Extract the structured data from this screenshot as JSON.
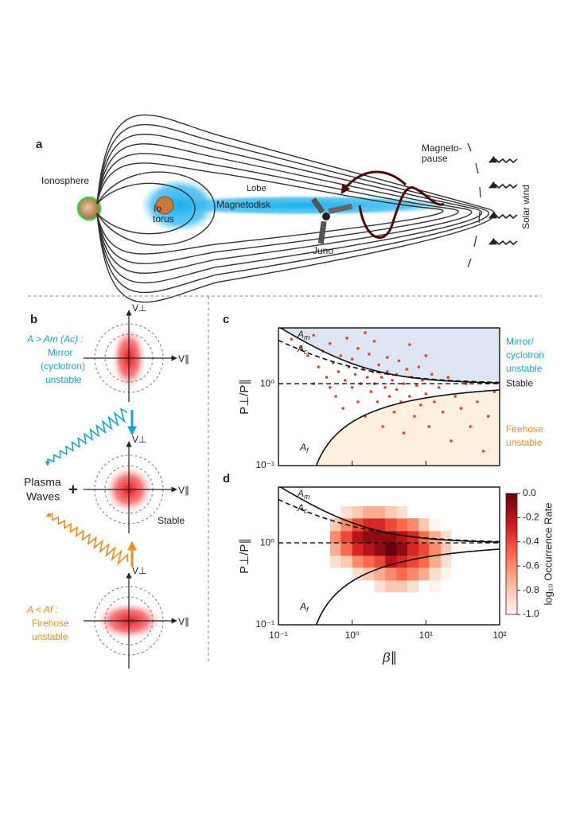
{
  "panel_a": {
    "label": "a",
    "ionosphere": "Ionosphere",
    "io_torus": [
      "Io",
      "torus"
    ],
    "lobe": "Lobe",
    "magnetodisk": "Magnetodisk",
    "juno": "Juno",
    "magnetopause": [
      "Magneto-",
      "pause"
    ],
    "solar_wind": "Solar wind"
  },
  "panel_b": {
    "label": "b",
    "axis_perp": "V⊥",
    "axis_par": "V∥",
    "mirror": [
      "A > Am (Ac) :",
      "Mirror",
      "(cyclotron)",
      "unstable"
    ],
    "waves": [
      "Plasma",
      "Waves"
    ],
    "plus": "+",
    "stable": "Stable",
    "firehose": [
      "A < Af :",
      "Firehose",
      "unstable"
    ]
  },
  "chart_data": [
    {
      "type": "scatter",
      "panel_label": "c",
      "color": "#e8432c",
      "x": [
        0.15,
        0.2,
        0.25,
        0.3,
        0.35,
        0.4,
        0.45,
        0.5,
        0.55,
        0.6,
        0.65,
        0.7,
        0.75,
        0.8,
        0.85,
        0.9,
        1,
        1,
        1.1,
        1.2,
        1.2,
        1.3,
        1.4,
        1.5,
        1.6,
        1.7,
        1.8,
        1.9,
        2,
        2,
        2.2,
        2.3,
        2.5,
        2.6,
        2.8,
        3,
        3,
        3.2,
        3.5,
        3.7,
        4,
        4,
        4.3,
        4.6,
        5,
        5,
        5.5,
        6,
        6.5,
        7,
        7.5,
        8,
        8.5,
        9,
        10,
        11,
        12,
        13,
        15,
        17,
        20,
        22,
        25,
        30,
        35,
        40,
        50,
        60,
        70,
        85,
        0.5,
        0.3,
        1.5,
        6,
        10
      ],
      "values": [
        3.5,
        2.8,
        2.2,
        3.9,
        1.6,
        2.5,
        1.2,
        3.1,
        1.8,
        0.7,
        1.4,
        2.2,
        0.5,
        1.1,
        3.6,
        1.6,
        0.9,
        2.0,
        1.3,
        0.6,
        2.7,
        1.0,
        1.5,
        0.4,
        1.2,
        2.3,
        0.8,
        1.4,
        1.0,
        3.3,
        0.6,
        1.7,
        1.2,
        0.3,
        0.9,
        1.4,
        2.1,
        0.7,
        1.1,
        0.45,
        1.3,
        0.85,
        1.9,
        0.6,
        1.0,
        0.25,
        1.5,
        0.7,
        1.2,
        0.4,
        0.95,
        1.6,
        0.55,
        1.1,
        0.75,
        0.3,
        1.3,
        0.6,
        0.9,
        0.45,
        1.2,
        0.2,
        0.7,
        0.5,
        1.0,
        0.3,
        0.6,
        0.15,
        0.4,
        0.8,
        0.9,
        1.0,
        4.2,
        3.0,
        2.2
      ],
      "xlim": [
        0.1,
        100
      ],
      "ylim": [
        0.1,
        4.8
      ],
      "log_x": true,
      "log_y": true,
      "xticks": [
        0.1,
        1,
        10,
        100
      ],
      "yticks": [
        {
          "value": 1,
          "label": "10⁰"
        },
        {
          "value": 0.1,
          "label": "10⁻¹"
        }
      ],
      "ylabel": "P⊥/P∥",
      "reference_line": 1,
      "curves": [
        {
          "name": "Am",
          "a": 0.77,
          "b": 0.76,
          "beta0": -0.016,
          "style": "solid"
        },
        {
          "name": "Ac",
          "a": 0.6,
          "b": 0.6,
          "beta0": 0,
          "style": "dashed"
        },
        {
          "name": "Af",
          "a": -0.673,
          "b": 0.31,
          "beta0": -0.066,
          "style": "solid"
        }
      ],
      "mirror_region_color": "#dce5f1",
      "firehose_region_color": "#fdf0de",
      "annotations": {
        "mirror": [
          "Mirror/",
          "cyclotron",
          "unstable"
        ],
        "stable": "Stable",
        "firehose": [
          "Firehose",
          "unstable"
        ]
      }
    },
    {
      "type": "heatmap",
      "panel_label": "d",
      "xbins": [
        0.5,
        0.7,
        1,
        1.4,
        2,
        2.8,
        4,
        5.6,
        8,
        11,
        16,
        22,
        32
      ],
      "ybins": [
        0.25,
        0.35,
        0.5,
        0.7,
        1,
        1.4,
        2,
        2.8
      ],
      "values": [
        [
          null,
          null,
          null,
          null,
          -0.9,
          -0.8,
          -0.8,
          -0.9,
          null,
          -1,
          null,
          null
        ],
        [
          null,
          null,
          -0.9,
          -0.8,
          -0.7,
          -0.6,
          -0.5,
          -0.6,
          -0.7,
          -0.9,
          -1,
          null
        ],
        [
          -0.9,
          -0.8,
          -0.6,
          -0.5,
          -0.4,
          -0.2,
          -0.3,
          -0.4,
          -0.5,
          -0.7,
          -0.9,
          null
        ],
        [
          -0.7,
          -0.5,
          -0.3,
          -0.2,
          -0.1,
          0,
          -0.1,
          -0.3,
          -0.4,
          -0.6,
          -0.8,
          -1
        ],
        [
          -0.6,
          -0.4,
          -0.2,
          -0.1,
          -0.1,
          -0.1,
          -0.2,
          -0.3,
          -0.5,
          -0.7,
          -0.9,
          null
        ],
        [
          -0.8,
          -0.6,
          -0.4,
          -0.3,
          -0.3,
          -0.4,
          -0.5,
          -0.6,
          -0.8,
          -1,
          null,
          null
        ],
        [
          null,
          -0.9,
          -0.8,
          -0.7,
          -0.7,
          -0.8,
          -0.9,
          null,
          null,
          null,
          null,
          null
        ]
      ],
      "xlim": [
        0.1,
        100
      ],
      "ylim": [
        0.1,
        4.8
      ],
      "log_x": true,
      "log_y": true,
      "xticks": [
        {
          "value": 0.1,
          "label": "10⁻¹"
        },
        {
          "value": 1,
          "label": "10⁰"
        },
        {
          "value": 10,
          "label": "10¹"
        },
        {
          "value": 100,
          "label": "10²"
        }
      ],
      "yticks": [
        {
          "value": 1,
          "label": "10⁰"
        },
        {
          "value": 0.1,
          "label": "10⁻¹"
        }
      ],
      "xlabel": "β∥",
      "ylabel": "P⊥/P∥",
      "reference_line": 1,
      "curves": [
        {
          "name": "Am",
          "a": 0.77,
          "b": 0.76,
          "beta0": -0.016,
          "style": "solid"
        },
        {
          "name": "Ac",
          "a": 0.6,
          "b": 0.6,
          "beta0": 0,
          "style": "dashed"
        },
        {
          "name": "Af",
          "a": -0.673,
          "b": 0.31,
          "beta0": -0.066,
          "style": "solid"
        }
      ],
      "colorbar": {
        "label": "log₁₀ Occurrence Rate",
        "lim": [
          -1,
          0
        ],
        "ticks": [
          {
            "value": 0,
            "label": "0.0"
          },
          -0.2,
          -0.4,
          -0.6,
          -0.8,
          {
            "value": -1,
            "label": "-1.0"
          }
        ],
        "colors": [
          "#fff5f0",
          "#fcbba1",
          "#fb6a4a",
          "#cb181d",
          "#67000d"
        ]
      }
    }
  ]
}
